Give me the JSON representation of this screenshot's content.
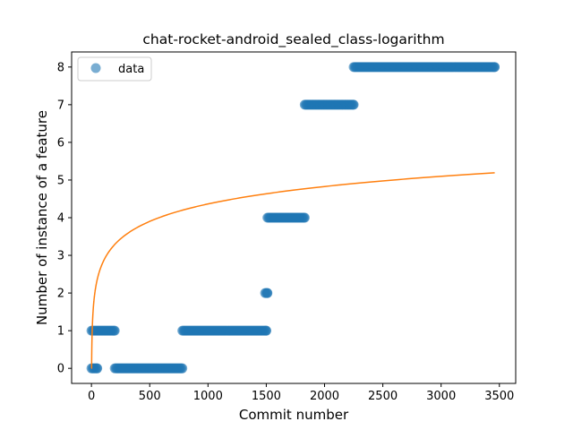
{
  "chart_data": {
    "type": "scatter",
    "title": "chat-rocket-android_sealed_class-logarithm",
    "xlabel": "Commit number",
    "ylabel": "Number of instance of a feature",
    "xlim": [
      -170,
      3640
    ],
    "ylim": [
      -0.4,
      8.4
    ],
    "x_ticks": [
      0,
      500,
      1000,
      1500,
      2000,
      2500,
      3000,
      3500
    ],
    "y_ticks": [
      0,
      1,
      2,
      3,
      4,
      5,
      6,
      7,
      8
    ],
    "grid": false,
    "legend": {
      "placement": "top-left",
      "entries": [
        "data"
      ]
    },
    "colors": {
      "data": "#1f77b4",
      "fit": "#ff7f0e"
    },
    "series": [
      {
        "name": "data",
        "kind": "scatter",
        "segments": [
          {
            "x_start": 0,
            "x_end": 200,
            "y": 1
          },
          {
            "x_start": 0,
            "x_end": 50,
            "y": 0
          },
          {
            "x_start": 200,
            "x_end": 780,
            "y": 0
          },
          {
            "x_start": 780,
            "x_end": 1500,
            "y": 1
          },
          {
            "x_start": 1490,
            "x_end": 1510,
            "y": 2
          },
          {
            "x_start": 1510,
            "x_end": 1830,
            "y": 4
          },
          {
            "x_start": 1830,
            "x_end": 2250,
            "y": 7
          },
          {
            "x_start": 2250,
            "x_end": 3460,
            "y": 8
          }
        ]
      },
      {
        "kind": "line",
        "function": "a + b*ln(x)",
        "a": -0.25,
        "b": 0.668,
        "x_start": 1,
        "x_end": 3460
      }
    ]
  }
}
